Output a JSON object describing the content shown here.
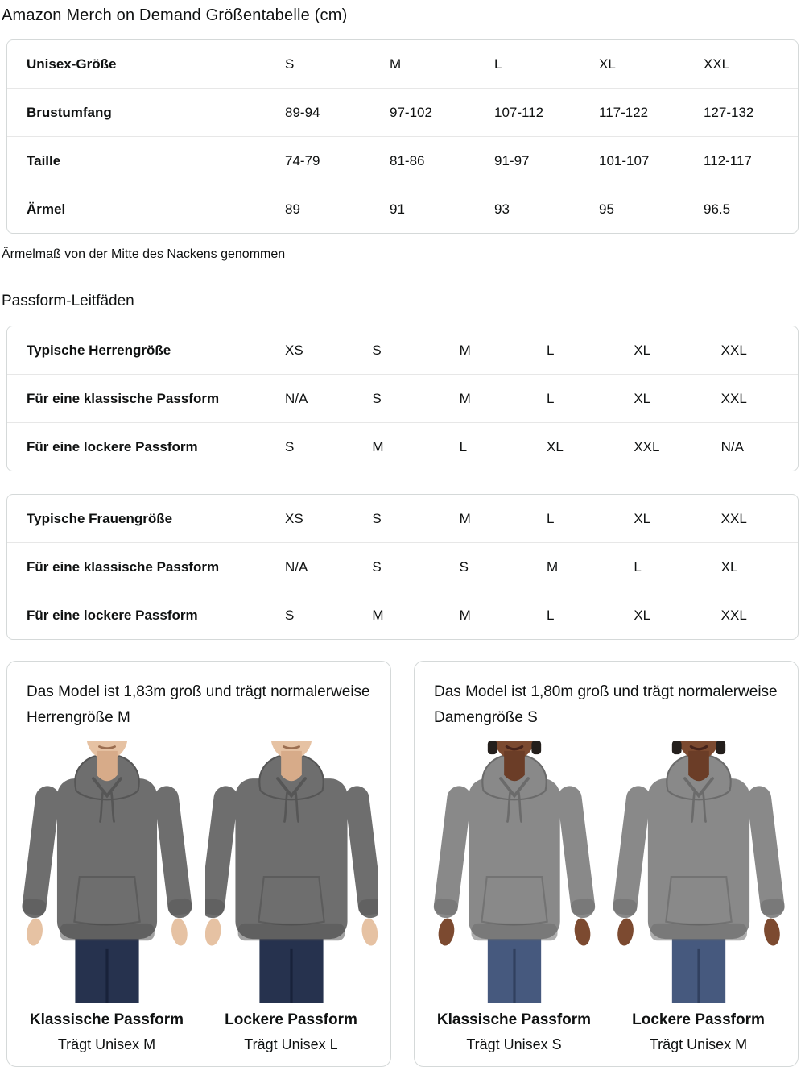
{
  "page": {
    "title": "Amazon Merch on Demand Größentabelle (cm)"
  },
  "colors": {
    "text": "#0f1111",
    "table_border": "#d5d9d9",
    "row_divider": "#e7e7e7"
  },
  "size_table": {
    "header_label": "Unisex-Größe",
    "header_sizes": [
      "S",
      "M",
      "L",
      "XL",
      "XXL"
    ],
    "rows": [
      {
        "label": "Brustumfang",
        "values": [
          "89-94",
          "97-102",
          "107-112",
          "117-122",
          "127-132"
        ]
      },
      {
        "label": "Taille",
        "values": [
          "74-79",
          "81-86",
          "91-97",
          "101-107",
          "112-117"
        ]
      },
      {
        "label": "Ärmel",
        "values": [
          "89",
          "91",
          "93",
          "95",
          "96.5"
        ]
      }
    ],
    "footnote": "Ärmelmaß von der Mitte des Nackens genommen"
  },
  "fit_section": {
    "title": "Passform-Leitfäden",
    "tables": [
      {
        "header_label": "Typische Herrengröße",
        "header_sizes": [
          "XS",
          "S",
          "M",
          "L",
          "XL",
          "XXL"
        ],
        "rows": [
          {
            "label": "Für eine klassische Passform",
            "values": [
              "N/A",
              "S",
              "M",
              "L",
              "XL",
              "XXL"
            ]
          },
          {
            "label": "Für eine lockere Passform",
            "values": [
              "S",
              "M",
              "L",
              "XL",
              "XXL",
              "N/A"
            ]
          }
        ]
      },
      {
        "header_label": "Typische Frauengröße",
        "header_sizes": [
          "XS",
          "S",
          "M",
          "L",
          "XL",
          "XXL"
        ],
        "rows": [
          {
            "label": "Für eine klassische Passform",
            "values": [
              "N/A",
              "S",
              "S",
              "M",
              "L",
              "XL"
            ]
          },
          {
            "label": "Für eine lockere Passform",
            "values": [
              "S",
              "M",
              "M",
              "L",
              "XL",
              "XXL"
            ]
          }
        ]
      }
    ]
  },
  "model_cards": [
    {
      "description": "Das Model ist 1,83m groß und trägt normalerweise Herrengröße M",
      "model_type": "male",
      "colors": {
        "hoodie": "#6e6e6e",
        "hoodie_dark": "#565656",
        "skin": "#e6c2a3",
        "skin_shadow": "#d7ab89",
        "mouth": "#9b6e50",
        "jeans": "#26324e",
        "jeans_dark": "#18223a",
        "hair": ""
      },
      "figures": [
        {
          "fit_title": "Klassische Passform",
          "fit_size": "Trägt Unisex M",
          "silhouette": "classic"
        },
        {
          "fit_title": "Lockere Passform",
          "fit_size": "Trägt Unisex L",
          "silhouette": "loose"
        }
      ]
    },
    {
      "description": "Das Model ist 1,80m groß und trägt normalerweise Damengröße S",
      "model_type": "female",
      "colors": {
        "hoodie": "#898989",
        "hoodie_dark": "#6b6b6b",
        "skin": "#7c4a30",
        "skin_shadow": "#6b3d27",
        "mouth": "#46231a",
        "jeans": "#46597e",
        "jeans_dark": "#31405f",
        "hair": "#241f1c"
      },
      "figures": [
        {
          "fit_title": "Klassische Passform",
          "fit_size": "Trägt Unisex S",
          "silhouette": "classic"
        },
        {
          "fit_title": "Lockere Passform",
          "fit_size": "Trägt Unisex M",
          "silhouette": "loose"
        }
      ]
    }
  ]
}
